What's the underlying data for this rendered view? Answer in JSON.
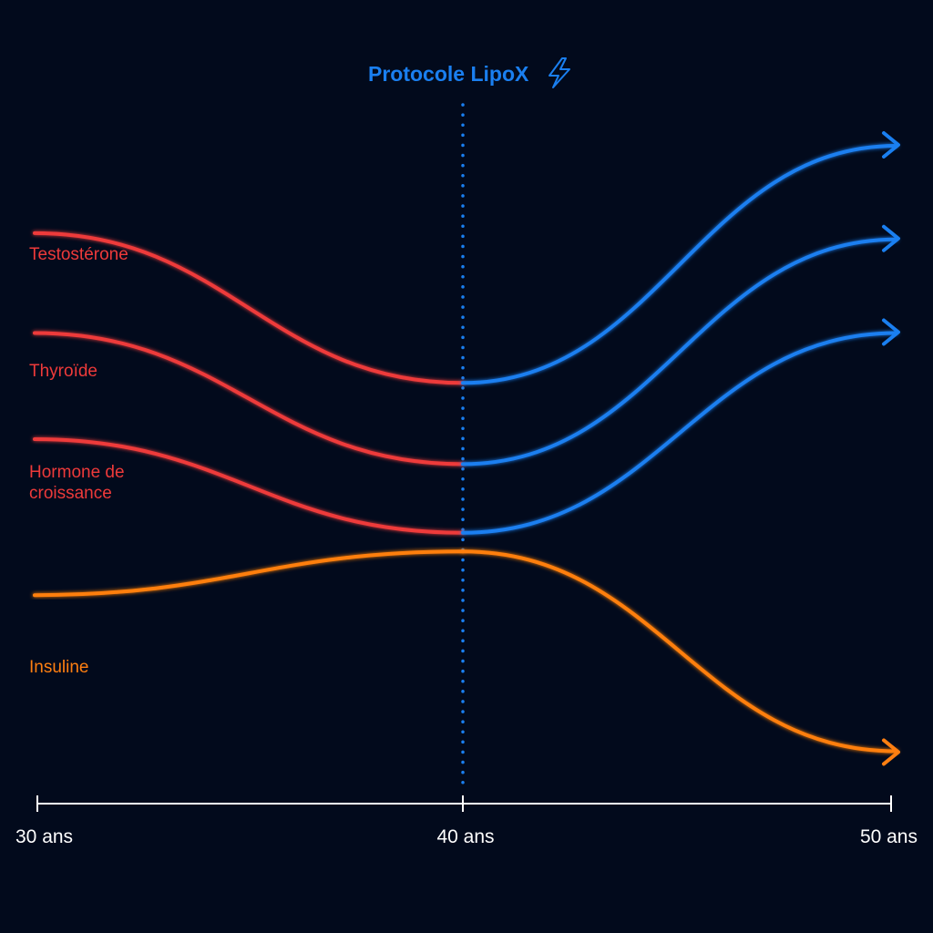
{
  "chart_data": {
    "type": "line",
    "title": "",
    "xlabel": "",
    "ylabel": "",
    "x_ticks": [
      "30 ans",
      "40 ans",
      "50 ans"
    ],
    "x_tick_values": [
      30,
      40,
      50
    ],
    "xlim": [
      30,
      50
    ],
    "grid": false,
    "legend": "none",
    "marker": {
      "label": "Protocole LipoX",
      "icon": "lightning-bolt-icon",
      "x": 40,
      "color": "#1a7ff0"
    },
    "colors": {
      "before_protocol": "#ee3a3a",
      "after_protocol": "#1a7ff0",
      "insulin": "#ff7f11",
      "axis": "#ffffff",
      "background": "#020a1c"
    },
    "series": [
      {
        "name": "Testostérone",
        "label_lines": [
          "Testostérone"
        ],
        "color": "#ee3a3a",
        "color_after": "#1a7ff0",
        "points": [
          [
            30,
            0.86
          ],
          [
            40,
            0.62
          ],
          [
            50,
            1.0
          ]
        ]
      },
      {
        "name": "Thyroïde",
        "label_lines": [
          "Thyroïde"
        ],
        "color": "#ee3a3a",
        "color_after": "#1a7ff0",
        "points": [
          [
            30,
            0.7
          ],
          [
            40,
            0.49
          ],
          [
            50,
            0.85
          ]
        ]
      },
      {
        "name": "Hormone de croissance",
        "label_lines": [
          "Hormone de",
          "croissance"
        ],
        "color": "#ee3a3a",
        "color_after": "#1a7ff0",
        "points": [
          [
            30,
            0.53
          ],
          [
            40,
            0.38
          ],
          [
            50,
            0.7
          ]
        ]
      },
      {
        "name": "Insuline",
        "label_lines": [
          "Insuline"
        ],
        "color": "#ff7f11",
        "color_after": "#ff7f11",
        "points": [
          [
            30,
            0.28
          ],
          [
            40,
            0.35
          ],
          [
            50,
            0.03
          ]
        ]
      }
    ]
  }
}
